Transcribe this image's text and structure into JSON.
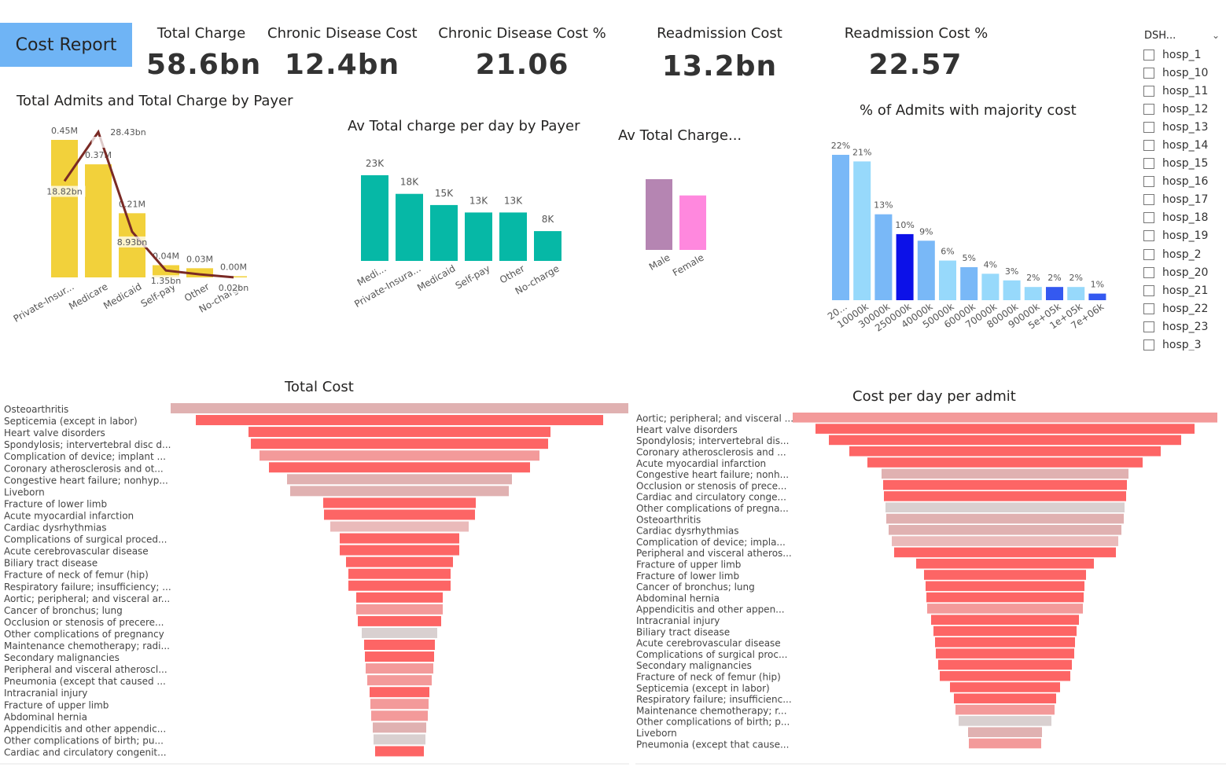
{
  "report_title": "Cost Report",
  "kpis": [
    {
      "label": "Total Charge",
      "value": "58.6bn"
    },
    {
      "label": "Chronic Disease Cost",
      "value": "12.4bn"
    },
    {
      "label": "Chronic Disease Cost %",
      "value": "21.06"
    },
    {
      "label": "Readmission Cost",
      "value": "13.2bn"
    },
    {
      "label": "Readmission Cost %",
      "value": "22.57"
    }
  ],
  "slicer": {
    "header": "DSH...",
    "items": [
      "hosp_1",
      "hosp_10",
      "hosp_11",
      "hosp_12",
      "hosp_13",
      "hosp_14",
      "hosp_15",
      "hosp_16",
      "hosp_17",
      "hosp_18",
      "hosp_19",
      "hosp_2",
      "hosp_20",
      "hosp_21",
      "hosp_22",
      "hosp_23",
      "hosp_3"
    ]
  },
  "chart_data": [
    {
      "id": "admits_by_payer",
      "type": "bar",
      "title": "Total Admits and Total Charge by Payer",
      "categories": [
        "Private-Insur...",
        "Medicare",
        "Medicaid",
        "Self-pay",
        "Other",
        "No-charge"
      ],
      "series": [
        {
          "kind": "bar",
          "values": [
            0.45,
            0.37,
            0.21,
            0.04,
            0.03,
            0.0
          ],
          "labels": [
            "0.45M",
            "0.37M",
            "0.21M",
            "0.04M",
            "0.03M",
            "0.00M"
          ],
          "color": "#f2d13b"
        },
        {
          "kind": "line",
          "values": [
            18.82,
            28.43,
            8.93,
            1.35,
            0.6,
            0.02
          ],
          "labels": [
            "18.82bn",
            "28.43bn",
            "8.93bn",
            "1.35bn",
            "",
            "0.02bn"
          ],
          "color": "#7a2a25"
        }
      ]
    },
    {
      "id": "charge_per_day_by_payer",
      "type": "bar",
      "title": "Av Total charge per day by Payer",
      "categories": [
        "Medi...",
        "Private-Insura...",
        "Medicaid",
        "Self-pay",
        "Other",
        "No-charge"
      ],
      "values": [
        23,
        18,
        15,
        13,
        13,
        8
      ],
      "labels": [
        "23K",
        "18K",
        "15K",
        "13K",
        "13K",
        "8K"
      ],
      "color": "#06b8a6"
    },
    {
      "id": "charge_by_gender",
      "type": "bar",
      "title": "Av Total Charge...",
      "categories": [
        "Male",
        "Female"
      ],
      "values": [
        1.0,
        0.77
      ],
      "colors": [
        "#b585b2",
        "#ff88de"
      ]
    },
    {
      "id": "admits_majority_cost",
      "type": "bar",
      "title": "% of Admits with majority cost",
      "categories": [
        "20...",
        "10000k",
        "30000k",
        "250000k",
        "40000k",
        "50000k",
        "60000k",
        "70000k",
        "80000k",
        "90000k",
        "5e+05k",
        "1e+05k",
        "7e+06k"
      ],
      "values": [
        22,
        21,
        13,
        10,
        9,
        6,
        5,
        4,
        3,
        2,
        2,
        2,
        1
      ],
      "labels": [
        "22%",
        "21%",
        "13%",
        "10%",
        "9%",
        "6%",
        "5%",
        "4%",
        "3%",
        "2%",
        "2%",
        "2%",
        "1%"
      ],
      "colors": [
        "#79b8f7",
        "#97d9fb",
        "#79b8f7",
        "#0c11e8",
        "#79b8f7",
        "#97d9fb",
        "#79b8f7",
        "#97d9fb",
        "#97d9fb",
        "#97d9fb",
        "#3459f0",
        "#97d9fb",
        "#3459f0"
      ]
    },
    {
      "id": "total_cost",
      "type": "bar",
      "title": "Total Cost",
      "categories": [
        "Osteoarthritis",
        "Septicemia (except in labor)",
        "Heart valve disorders",
        "Spondylosis; intervertebral disc d...",
        "Complication of device; implant ...",
        "Coronary atherosclerosis and ot...",
        "Congestive heart failure; nonhyp...",
        "Liveborn",
        "Fracture of lower limb",
        "Acute myocardial infarction",
        "Cardiac dysrhythmias",
        "Complications of surgical proced...",
        "Acute cerebrovascular disease",
        "Biliary tract disease",
        "Fracture of neck of femur (hip)",
        "Respiratory failure; insufficiency; ...",
        "Aortic; peripheral; and visceral ar...",
        "Cancer of bronchus; lung",
        "Occlusion or stenosis of precere...",
        "Other complications of pregnancy",
        "Maintenance chemotherapy; radi...",
        "Secondary malignancies",
        "Peripheral and visceral atheroscl...",
        "Pneumonia (except that caused ...",
        "Intracranial injury",
        "Fracture of upper limb",
        "Abdominal hernia",
        "Appendicitis and other appendic...",
        "Other complications of birth; pu...",
        "Cardiac and circulatory congenit..."
      ],
      "values": [
        582,
        518,
        384,
        378,
        356,
        332,
        286,
        278,
        194,
        192,
        176,
        152,
        152,
        136,
        130,
        130,
        110,
        110,
        106,
        96,
        90,
        88,
        86,
        82,
        76,
        74,
        72,
        68,
        66,
        62
      ],
      "colors": [
        "#e0b1b1",
        "#fd6565",
        "#fd6565",
        "#fd6565",
        "#f39a9a",
        "#fd6565",
        "#e0b1b1",
        "#e0b1b1",
        "#fd6565",
        "#fd6565",
        "#eababa",
        "#fd6565",
        "#fd6565",
        "#fd6565",
        "#fd6565",
        "#fd6565",
        "#fd6565",
        "#f39a9a",
        "#fd6565",
        "#d9d0d0",
        "#fd6565",
        "#fd6565",
        "#f39a9a",
        "#f39a9a",
        "#fd6565",
        "#f39a9a",
        "#f39a9a",
        "#e0b1b1",
        "#d9d0d0",
        "#fd6565"
      ]
    },
    {
      "id": "cost_per_day_per_admit",
      "type": "bar",
      "title": "Cost per day per admit",
      "categories": [
        "Aortic; peripheral; and visceral ...",
        "Heart valve disorders",
        "Spondylosis; intervertebral dis...",
        "Coronary atherosclerosis and ...",
        "Acute myocardial infarction",
        "Congestive heart failure; nonh...",
        "Occlusion or stenosis of prece...",
        "Cardiac and circulatory conge...",
        "Other complications of pregna...",
        "Osteoarthritis",
        "Cardiac dysrhythmias",
        "Complication of device; impla...",
        "Peripheral and visceral atheros...",
        "Fracture of upper limb",
        "Fracture of lower limb",
        "Cancer of bronchus; lung",
        "Abdominal hernia",
        "Appendicitis and other appen...",
        "Intracranial injury",
        "Biliary tract disease",
        "Acute cerebrovascular disease",
        "Complications of surgical proc...",
        "Secondary malignancies",
        "Fracture of neck of femur (hip)",
        "Septicemia (except in labor)",
        "Respiratory failure; insufficienc...",
        "Maintenance chemotherapy; r...",
        "Other complications of birth; p...",
        "Liveborn",
        "Pneumonia (except that cause..."
      ],
      "values": [
        540,
        482,
        448,
        396,
        350,
        314,
        310,
        308,
        304,
        302,
        296,
        288,
        282,
        226,
        206,
        202,
        200,
        198,
        188,
        182,
        178,
        176,
        170,
        166,
        140,
        130,
        126,
        118,
        94,
        92
      ],
      "colors": [
        "#f39a9a",
        "#fd6565",
        "#fd6565",
        "#fd6565",
        "#fd6565",
        "#e0b1b1",
        "#fd6565",
        "#fd6565",
        "#d9d0d0",
        "#e0b1b1",
        "#e0b1b1",
        "#eababa",
        "#fd6565",
        "#fd6565",
        "#fd6565",
        "#fd6565",
        "#fd6565",
        "#f39a9a",
        "#fd6565",
        "#fd6565",
        "#fd6565",
        "#fd6565",
        "#fd6565",
        "#fd6565",
        "#fd6565",
        "#fd6565",
        "#f39a9a",
        "#d9d0d0",
        "#e0b1b1",
        "#f39a9a"
      ]
    }
  ]
}
